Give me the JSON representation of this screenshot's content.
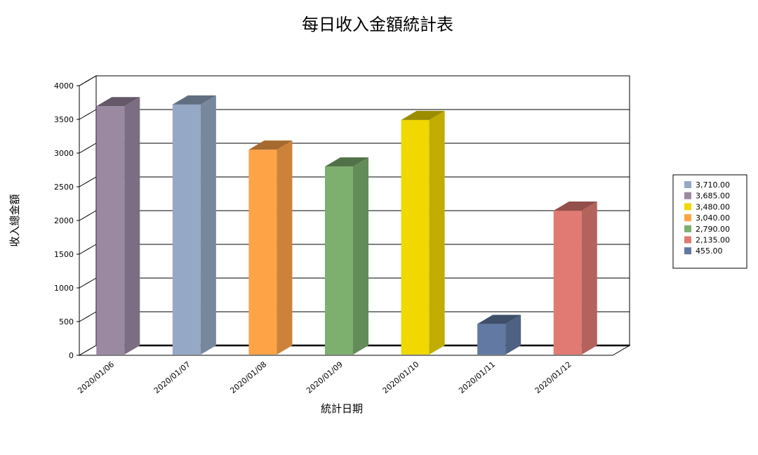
{
  "chart_data": {
    "type": "bar",
    "title": "每日收入金額統計表",
    "xlabel": "統計日期",
    "ylabel": "收入總金額",
    "categories": [
      "2020/01/06",
      "2020/01/07",
      "2020/01/08",
      "2020/01/09",
      "2020/01/10",
      "2020/01/11",
      "2020/01/12"
    ],
    "values": [
      3685,
      3710,
      3040,
      2790,
      3480,
      455,
      2135
    ],
    "colors": [
      "#9b89a2",
      "#95a9c6",
      "#ffa347",
      "#7daf6f",
      "#f0d800",
      "#6179a3",
      "#e07a73"
    ],
    "ylim": [
      0,
      4000
    ],
    "yticks": [
      "0",
      "500",
      "1000",
      "1500",
      "2000",
      "2500",
      "3000",
      "3500",
      "4000"
    ],
    "grid": true,
    "legend_position": "right",
    "legend": [
      {
        "label": "3,710.00",
        "color": "#95a9c6"
      },
      {
        "label": "3,685.00",
        "color": "#9b89a2"
      },
      {
        "label": "3,480.00",
        "color": "#f0d800"
      },
      {
        "label": "3,040.00",
        "color": "#ffa347"
      },
      {
        "label": "2,790.00",
        "color": "#7daf6f"
      },
      {
        "label": "2,135.00",
        "color": "#e07a73"
      },
      {
        "label": "455.00",
        "color": "#6179a3"
      }
    ]
  }
}
